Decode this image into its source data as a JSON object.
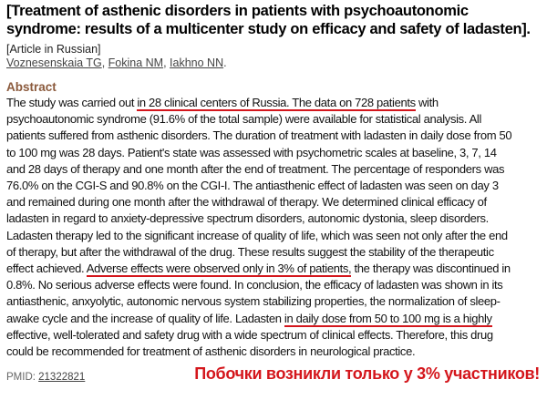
{
  "article": {
    "title": "[Treatment of asthenic disorders in patients with psychoautonomic syndrome: results of a multicenter study on efficacy and safety of ladasten].",
    "language_note": "[Article in Russian]",
    "authors": [
      "Voznesenskaia TG",
      "Fokina NM",
      "Iakhno NN"
    ],
    "author_sep": ", ",
    "author_end": ".",
    "abstract_heading": "Abstract",
    "abstract_lines": [
      [
        {
          "t": "The study was carried out "
        },
        {
          "t": "in 28 clinical centers of Russia. The data on 728 patients",
          "u": true
        },
        {
          "t": " with"
        }
      ],
      [
        {
          "t": "psychoautonomic syndrome (91.6% of the total sample) were available for statistical analysis. All"
        }
      ],
      [
        {
          "t": "patients suffered from asthenic disorders. The duration of treatment with ladasten in daily dose from 50"
        }
      ],
      [
        {
          "t": "to 100 mg was 28 days. Patient's state was assessed with psychometric scales at baseline, 3, 7, 14"
        }
      ],
      [
        {
          "t": "and 28 days of therapy and one month after the end of treatment. The percentage of responders was"
        }
      ],
      [
        {
          "t": "76.0% on the CGI-S and 90.8% on the CGI-I. The antiasthenic effect of ladasten was seen on day 3"
        }
      ],
      [
        {
          "t": "and remained during one month after the withdrawal of therapy. We determined clinical efficacy of"
        }
      ],
      [
        {
          "t": "ladasten in regard to anxiety-depressive spectrum disorders, autonomic dystonia, sleep disorders."
        }
      ],
      [
        {
          "t": "Ladasten therapy led to the significant increase of quality of life, which was seen not only after the end"
        }
      ],
      [
        {
          "t": "of therapy, but after the withdrawal of the drug. These results suggest the stability of the therapeutic"
        }
      ],
      [
        {
          "t": "effect achieved. "
        },
        {
          "t": "Adverse effects were observed only in 3% of patients,",
          "u": true
        },
        {
          "t": " the therapy was discontinued in"
        }
      ],
      [
        {
          "t": "0.8%. No serious adverse effects were found. In conclusion, the efficacy of ladasten was shown in its"
        }
      ],
      [
        {
          "t": "antiasthenic, anxyolytic, autonomic nervous system stabilizing properties, the normalization of sleep-"
        }
      ],
      [
        {
          "t": "awake cycle and the increase of quality of life. Ladasten "
        },
        {
          "t": "in daily dose from 50 to 100 mg is a highly",
          "u": true
        }
      ],
      [
        {
          "t": "effective, well-tolerated and safety drug with a wide spectrum of clinical effects. Therefore, this drug"
        }
      ],
      [
        {
          "t": "could be recommended for treatment of asthenic disorders in neurological practice."
        }
      ]
    ],
    "pmid_label": "PMID: ",
    "pmid": "21322821"
  },
  "annotation": {
    "text": "Побочки возникли только у 3% участников!",
    "color": "#d4161c"
  }
}
